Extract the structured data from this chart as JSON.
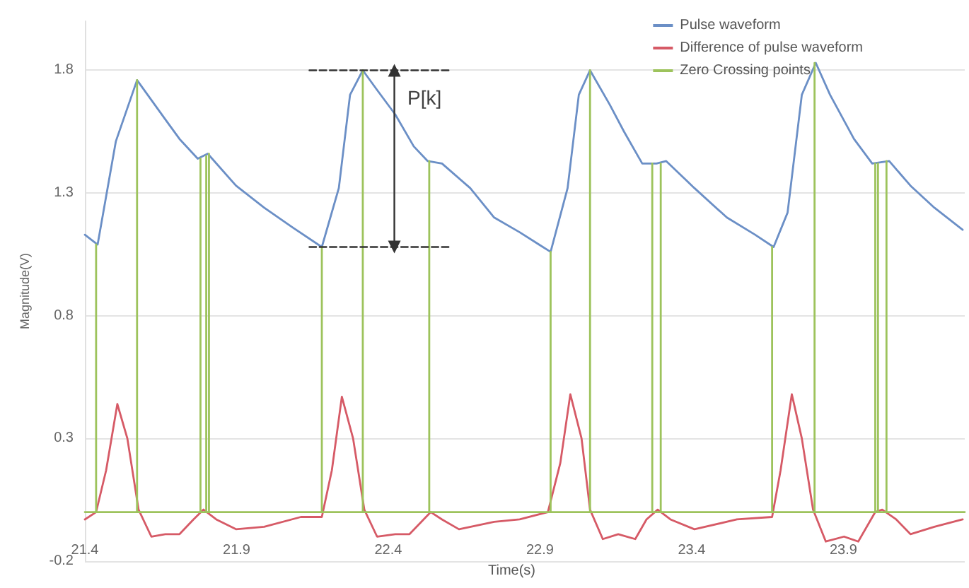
{
  "chart_data": {
    "type": "line",
    "xlabel": "Time(s)",
    "ylabel": "Magnitude(V)",
    "xlim": [
      21.4,
      24.3
    ],
    "xticks": [
      21.4,
      21.9,
      22.4,
      22.9,
      23.4,
      23.9
    ],
    "ylim": [
      -0.2,
      2.0
    ],
    "yticks": [
      -0.2,
      0.3,
      0.8,
      1.3,
      1.8
    ],
    "grid": "y",
    "legend": "top right",
    "marker": "none",
    "line_style": "solid",
    "series": [
      {
        "name": "Pulse waveform",
        "color": "#6b8fc6",
        "x": [
          21.4,
          21.442,
          21.502,
          21.572,
          21.665,
          21.712,
          21.772,
          21.805,
          21.898,
          21.991,
          22.084,
          22.181,
          22.237,
          22.274,
          22.316,
          22.363,
          22.423,
          22.484,
          22.53,
          22.577,
          22.67,
          22.749,
          22.833,
          22.935,
          22.991,
          23.028,
          23.065,
          23.13,
          23.177,
          23.237,
          23.284,
          23.316,
          23.409,
          23.516,
          23.609,
          23.67,
          23.716,
          23.763,
          23.809,
          23.856,
          23.935,
          23.995,
          24.051,
          24.121,
          24.2,
          24.293
        ],
        "values": [
          1.13,
          1.09,
          1.51,
          1.76,
          1.6,
          1.52,
          1.44,
          1.46,
          1.33,
          1.24,
          1.16,
          1.08,
          1.32,
          1.7,
          1.8,
          1.72,
          1.62,
          1.49,
          1.43,
          1.42,
          1.32,
          1.2,
          1.14,
          1.06,
          1.32,
          1.7,
          1.8,
          1.66,
          1.55,
          1.42,
          1.42,
          1.43,
          1.32,
          1.2,
          1.13,
          1.08,
          1.22,
          1.7,
          1.83,
          1.7,
          1.52,
          1.42,
          1.43,
          1.33,
          1.24,
          1.15
        ]
      },
      {
        "name": "Difference of pulse waveform",
        "color": "#d65a66",
        "x": [
          21.4,
          21.437,
          21.47,
          21.507,
          21.54,
          21.577,
          21.619,
          21.665,
          21.712,
          21.758,
          21.791,
          21.833,
          21.898,
          21.991,
          22.112,
          22.181,
          22.214,
          22.247,
          22.284,
          22.321,
          22.363,
          22.423,
          22.47,
          22.54,
          22.577,
          22.633,
          22.749,
          22.833,
          22.926,
          22.967,
          23,
          23.037,
          23.065,
          23.107,
          23.158,
          23.214,
          23.251,
          23.288,
          23.33,
          23.409,
          23.549,
          23.665,
          23.693,
          23.73,
          23.763,
          23.8,
          23.842,
          23.902,
          23.949,
          24.005,
          24.028,
          24.074,
          24.121,
          24.2,
          24.293
        ],
        "values": [
          -0.03,
          0,
          0.17,
          0.44,
          0.3,
          0.01,
          -0.1,
          -0.09,
          -0.09,
          -0.03,
          0.01,
          -0.03,
          -0.07,
          -0.06,
          -0.02,
          -0.02,
          0.17,
          0.47,
          0.3,
          0.01,
          -0.1,
          -0.09,
          -0.09,
          0,
          -0.03,
          -0.07,
          -0.04,
          -0.03,
          0,
          0.2,
          0.48,
          0.3,
          0.01,
          -0.11,
          -0.09,
          -0.11,
          -0.03,
          0.01,
          -0.03,
          -0.07,
          -0.03,
          -0.02,
          0.17,
          0.48,
          0.3,
          0.01,
          -0.12,
          -0.1,
          -0.12,
          0,
          0.01,
          -0.03,
          -0.09,
          -0.06,
          -0.03
        ]
      },
      {
        "name": "Zero Crossing points",
        "color": "#9dc35c",
        "x": [
          21.4,
          21.437,
          21.437,
          21.437,
          21.572,
          21.572,
          21.572,
          21.781,
          21.781,
          21.781,
          21.8,
          21.8,
          21.8,
          21.809,
          21.809,
          21.809,
          22.181,
          22.181,
          22.181,
          22.316,
          22.316,
          22.316,
          22.535,
          22.535,
          22.535,
          22.935,
          22.935,
          22.935,
          23.065,
          23.065,
          23.065,
          23.27,
          23.27,
          23.27,
          23.298,
          23.298,
          23.298,
          23.665,
          23.665,
          23.665,
          23.805,
          23.805,
          23.805,
          24.005,
          24.005,
          24.005,
          24.014,
          24.014,
          24.014,
          24.042,
          24.042,
          24.042,
          24.3
        ],
        "values": [
          0,
          0,
          1.09,
          0,
          0,
          1.76,
          0,
          0,
          1.44,
          0,
          0,
          1.45,
          0,
          0,
          1.46,
          0,
          0,
          1.08,
          0,
          0,
          1.8,
          0,
          0,
          1.43,
          0,
          0,
          1.06,
          0,
          0,
          1.8,
          0,
          0,
          1.42,
          0,
          0,
          1.42,
          0,
          0,
          1.08,
          0,
          0,
          1.83,
          0,
          0,
          1.42,
          0,
          0,
          1.42,
          0,
          0,
          1.43,
          0,
          0
        ]
      },
      {
        "color": "#333333",
        "line_style": "dashed",
        "x": [
          22.14,
          22.6
        ],
        "values": [
          1.8,
          1.8
        ]
      },
      {
        "color": "#333333",
        "line_style": "dashed",
        "x": [
          22.14,
          22.6
        ],
        "values": [
          1.08,
          1.08
        ]
      },
      {
        "color": "#333333",
        "marker": "triangle",
        "x": [
          22.42,
          22.42
        ],
        "values": [
          1.8,
          1.08
        ]
      }
    ],
    "annotations": [
      "P[k]"
    ]
  }
}
